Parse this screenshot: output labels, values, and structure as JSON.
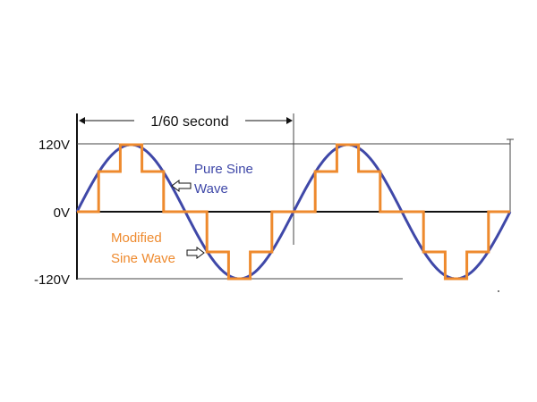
{
  "diagram": {
    "period_label": "1/60 second",
    "y_labels": {
      "top": "120V",
      "middle": "0V",
      "bottom": "-120V"
    },
    "pure_sine_label": [
      "Pure Sine",
      "Wave"
    ],
    "modified_sine_label": [
      "Modified",
      "Sine Wave"
    ],
    "colors": {
      "pure_sine": "#3f48a8",
      "modified_sine": "#ee8a2e",
      "axes": "#111111",
      "reference_lines": "#444444"
    },
    "cycles_shown": 2,
    "peak_voltage": 120,
    "modified_steps_per_half_cycle": [
      0.0,
      0.6,
      1.0,
      0.6,
      0.0
    ]
  }
}
